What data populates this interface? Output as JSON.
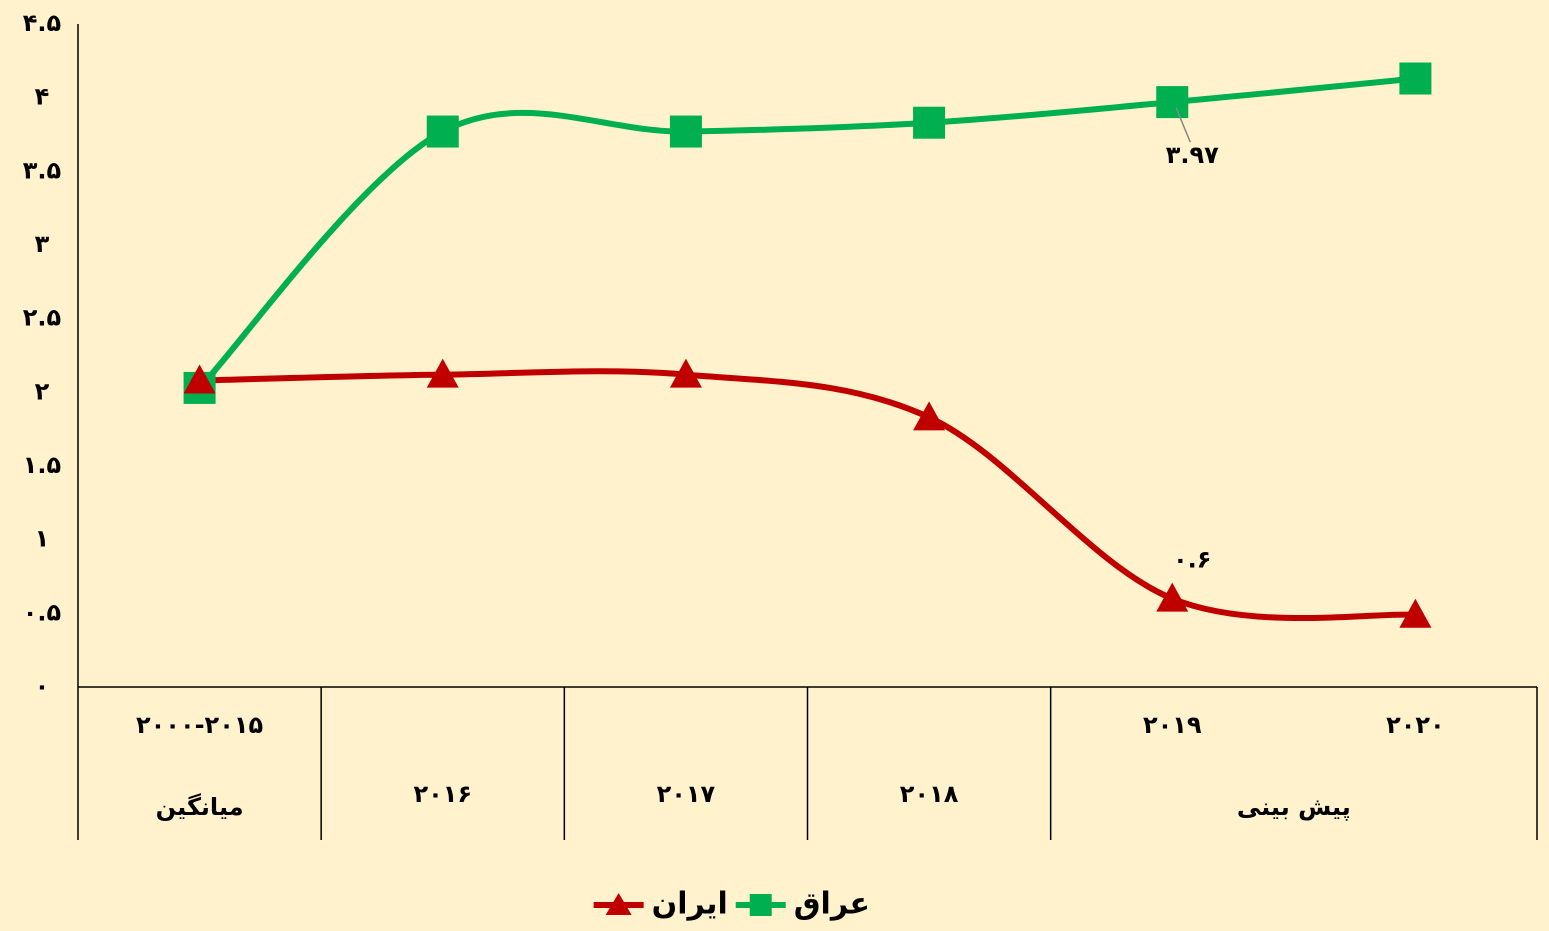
{
  "chart_data": {
    "type": "line",
    "categories": [
      "۲۰۰۰-۲۰۱۵",
      "۲۰۱۶",
      "۲۰۱۷",
      "۲۰۱۸",
      "۲۰۱۹",
      "۲۰۲۰"
    ],
    "category_groups": [
      {
        "label": "میانگین",
        "start": 0,
        "end": 0
      },
      {
        "label": "پیش بینی",
        "start": 4,
        "end": 5
      }
    ],
    "series": [
      {
        "name": "عراق",
        "color": "#00b050",
        "marker": "square",
        "values": [
          2.03,
          3.77,
          3.77,
          3.83,
          3.97,
          4.13
        ],
        "value_labels": [
          null,
          null,
          null,
          null,
          "۳.۹۷",
          null
        ]
      },
      {
        "name": "ایران",
        "color": "#c00000",
        "marker": "triangle",
        "values": [
          2.08,
          2.12,
          2.12,
          1.83,
          0.6,
          0.49
        ],
        "value_labels": [
          null,
          null,
          null,
          null,
          "۰.۶",
          null
        ]
      }
    ],
    "ylim": [
      0,
      4.5
    ],
    "yticks": [
      {
        "value": 0,
        "label": "۰"
      },
      {
        "value": 0.5,
        "label": "۰.۵"
      },
      {
        "value": 1,
        "label": "۱"
      },
      {
        "value": 1.5,
        "label": "۱.۵"
      },
      {
        "value": 2,
        "label": "۲"
      },
      {
        "value": 2.5,
        "label": "۲.۵"
      },
      {
        "value": 3,
        "label": "۳"
      },
      {
        "value": 3.5,
        "label": "۳.۵"
      },
      {
        "value": 4,
        "label": "۴"
      },
      {
        "value": 4.5,
        "label": "۴.۵"
      }
    ],
    "smooth": true,
    "grid": false,
    "legend": "bottom"
  }
}
